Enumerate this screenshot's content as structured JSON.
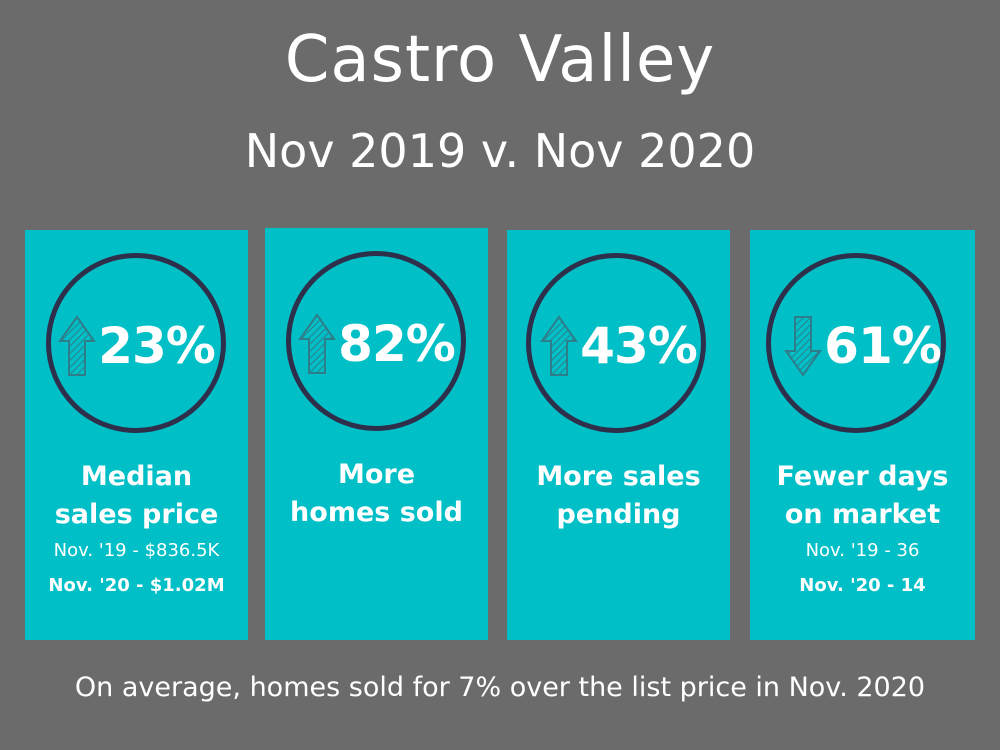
{
  "header": {
    "title": "Castro Valley",
    "subtitle": "Nov 2019 v. Nov 2020"
  },
  "colors": {
    "background": "#6b6b6b",
    "card": "#00bfc6",
    "circle": "#2e2f4a",
    "arrow": "#2e7d8a"
  },
  "cards": [
    {
      "direction": "up",
      "arrow_icon": "up-arrow-icon",
      "percent": "23%",
      "label_line1": "Median",
      "label_line2": "sales price",
      "detail_prev": "Nov. '19 - $836.5K",
      "detail_curr": "Nov. '20 - $1.02M"
    },
    {
      "direction": "up",
      "arrow_icon": "up-arrow-icon",
      "percent": "82%",
      "label_line1": "More",
      "label_line2": "homes sold"
    },
    {
      "direction": "up",
      "arrow_icon": "up-arrow-icon",
      "percent": "43%",
      "label_line1": "More sales",
      "label_line2": "pending"
    },
    {
      "direction": "down",
      "arrow_icon": "down-arrow-icon",
      "percent": "61%",
      "label_line1": "Fewer days",
      "label_line2": "on market",
      "detail_prev": "Nov. '19 - 36",
      "detail_curr": "Nov. '20 - 14"
    }
  ],
  "footer": {
    "text": "On average, homes sold for 7% over the list price in Nov. 2020"
  }
}
